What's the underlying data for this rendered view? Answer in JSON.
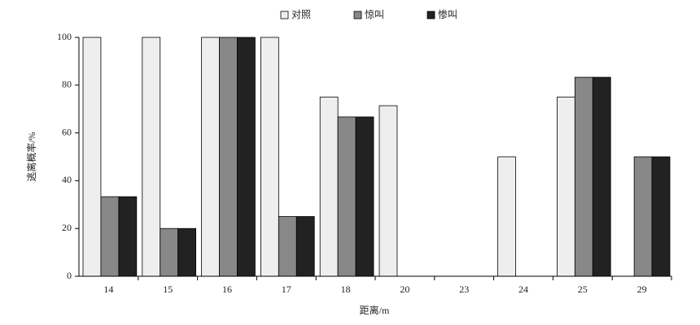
{
  "chart_data": {
    "type": "bar",
    "x_label": "距离/m",
    "y_label": "逃离概率/%",
    "categories": [
      "14",
      "15",
      "16",
      "17",
      "18",
      "20",
      "23",
      "24",
      "25",
      "29"
    ],
    "series": [
      {
        "name": "对照",
        "color": "#eeeeee",
        "values": [
          100,
          100,
          100,
          100,
          75,
          71.4,
          0,
          50,
          75,
          0
        ]
      },
      {
        "name": "惊叫",
        "color": "#888888",
        "values": [
          33.3,
          20,
          100,
          25,
          66.7,
          0,
          0,
          0,
          83.3,
          50
        ]
      },
      {
        "name": "惨叫",
        "color": "#222222",
        "values": [
          33.3,
          20,
          100,
          25,
          66.7,
          0,
          0,
          0,
          83.3,
          50
        ]
      }
    ],
    "ylim": [
      0,
      100
    ],
    "yticks": [
      0,
      20,
      40,
      60,
      80,
      100
    ],
    "legend": "top"
  }
}
